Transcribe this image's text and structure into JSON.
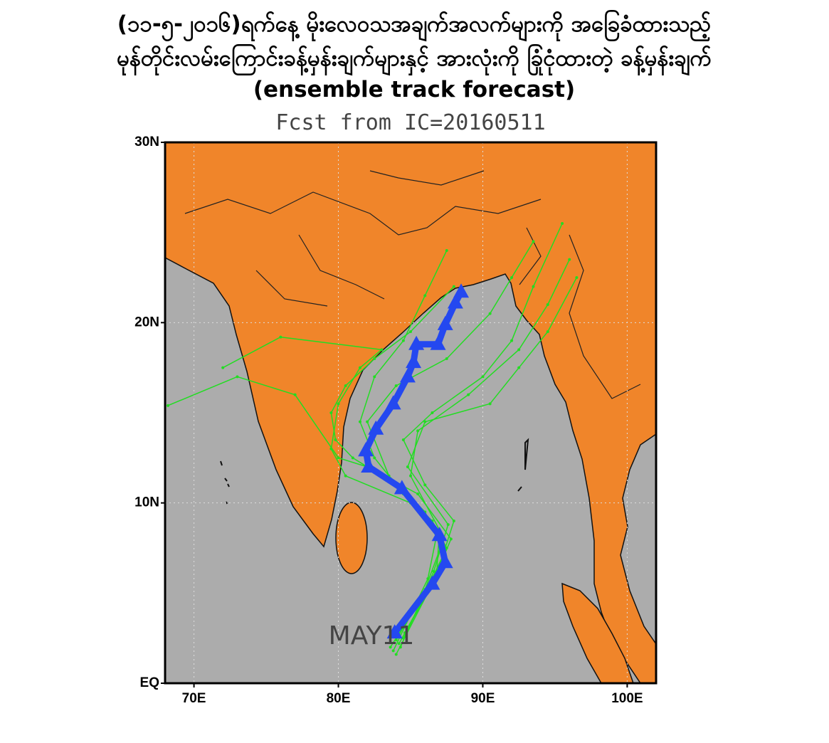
{
  "chart_data": {
    "type": "map",
    "title_lines": [
      "(၁၁-၅-၂၀၁၆)ရက်နေ့ မိုးလေဝသအချက်အလက်များကို အခြေခံထားသည့်",
      "မုန်တိုင်းလမ်းကြောင်းခန့်မှန်းချက်များနှင့် အားလုံးကို ခြုံငုံထားတဲ့ ခန့်မှန်းချက်",
      "(ensemble track forecast)"
    ],
    "subtitle": "Fcst from IC=20160511",
    "annotation": "MAY11",
    "xlim": [
      68,
      102
    ],
    "ylim": [
      0,
      30
    ],
    "xticks": [
      {
        "value": 70,
        "label": "70E"
      },
      {
        "value": 80,
        "label": "80E"
      },
      {
        "value": 90,
        "label": "90E"
      },
      {
        "value": 100,
        "label": "100E"
      }
    ],
    "yticks": [
      {
        "value": 0,
        "label": "EQ"
      },
      {
        "value": 10,
        "label": "10N"
      },
      {
        "value": 20,
        "label": "20N"
      },
      {
        "value": 30,
        "label": "30N"
      }
    ],
    "grid": true,
    "series": [
      {
        "color": "#22dd22",
        "x": [
          83.6,
          86.0,
          87.5,
          86.5,
          84.0,
          81.0,
          79.8,
          79.5,
          80.5,
          82.5,
          85.0,
          88.0
        ],
        "values": [
          2.0,
          5.0,
          7.5,
          9.0,
          11.0,
          12.5,
          13.5,
          15.0,
          16.5,
          18.0,
          19.5,
          22.0
        ]
      },
      {
        "color": "#22dd22",
        "x": [
          84.0,
          86.5,
          87.8,
          85.5,
          82.0,
          80.0,
          77.0,
          73.0,
          68.2
        ],
        "values": [
          1.6,
          5.5,
          8.0,
          10.5,
          12.0,
          12.5,
          16.0,
          17.0,
          15.4
        ]
      },
      {
        "color": "#22dd22",
        "x": [
          84.5,
          87.0,
          88.0,
          86.0,
          84.5,
          86.5,
          90.0,
          92.0,
          93.5,
          95.5
        ],
        "values": [
          2.5,
          6.5,
          9.0,
          11.0,
          13.5,
          15.0,
          17.0,
          19.0,
          22.0,
          25.5
        ]
      },
      {
        "color": "#22dd22",
        "x": [
          84.2,
          86.8,
          87.0,
          85.0,
          85.5,
          89.0,
          92.5,
          94.5,
          96.0
        ],
        "values": [
          2.2,
          6.0,
          8.5,
          11.5,
          14.0,
          16.0,
          18.5,
          21.0,
          23.5
        ]
      },
      {
        "color": "#22dd22",
        "x": [
          83.8,
          86.2,
          86.8,
          84.5,
          82.5,
          81.5,
          82.5,
          84.5,
          86.0,
          87.5
        ],
        "values": [
          1.8,
          5.8,
          8.2,
          10.5,
          12.5,
          14.5,
          17.0,
          19.0,
          21.5,
          24.0
        ]
      },
      {
        "color": "#22dd22",
        "x": [
          84.0,
          86.0,
          87.2,
          85.0,
          80.5,
          79.5,
          80.0,
          81.5,
          83.0,
          76.0,
          72.0
        ],
        "values": [
          2.4,
          5.2,
          7.8,
          10.0,
          11.5,
          13.0,
          15.5,
          17.5,
          18.5,
          19.2,
          17.5
        ]
      },
      {
        "color": "#22dd22",
        "x": [
          84.6,
          87.5,
          86.0,
          83.5,
          82.0,
          84.0,
          87.5,
          90.5,
          92.0,
          93.5
        ],
        "values": [
          2.8,
          6.8,
          9.5,
          11.5,
          14.5,
          16.5,
          18.0,
          20.5,
          22.5,
          24.5
        ]
      },
      {
        "color": "#22dd22",
        "x": [
          84.3,
          86.6,
          87.6,
          84.8,
          86.0,
          90.5,
          92.5,
          94.5,
          96.5
        ],
        "values": [
          2.0,
          6.2,
          8.8,
          12.0,
          14.5,
          15.5,
          17.5,
          19.5,
          22.5
        ]
      },
      {
        "color": "#2448f0",
        "x": [
          83.9,
          86.5,
          87.4,
          87.0,
          84.4,
          82.1,
          81.9,
          82.6,
          83.8,
          84.8,
          85.2,
          85.4,
          86.9,
          87.4,
          88.1,
          88.5
        ],
        "values": [
          2.8,
          5.5,
          6.7,
          8.2,
          10.8,
          12.0,
          12.9,
          14.1,
          15.5,
          17.0,
          17.8,
          18.8,
          18.8,
          19.9,
          21.1,
          21.7
        ]
      }
    ]
  }
}
